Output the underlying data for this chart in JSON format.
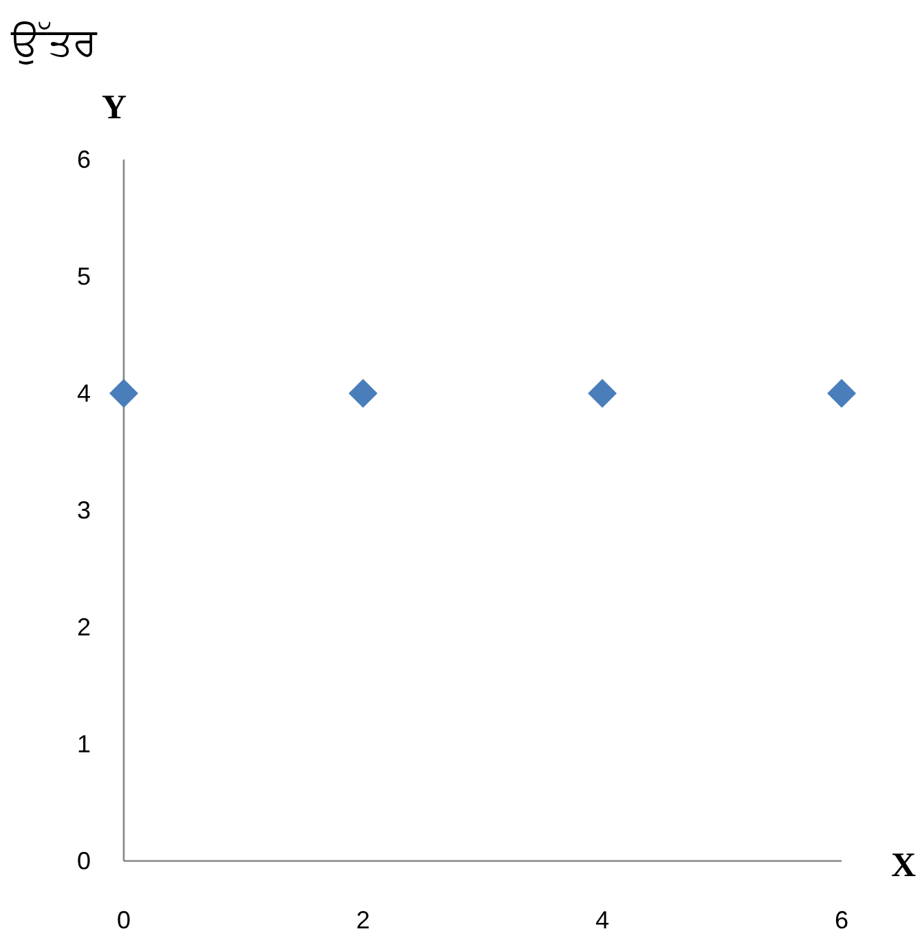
{
  "chart_data": {
    "type": "scatter",
    "title": "ਉੱਤਰ",
    "xlabel": "X",
    "ylabel": "Y",
    "x": [
      0,
      2,
      4,
      6
    ],
    "values": [
      4,
      4,
      4,
      4
    ],
    "color": "#4a7ebb",
    "marker": "diamond",
    "xlim": [
      0,
      6
    ],
    "ylim": [
      0,
      6
    ],
    "xticks": [
      0,
      2,
      4,
      6
    ],
    "yticks": [
      0,
      1,
      2,
      3,
      4,
      5,
      6
    ],
    "grid": false
  }
}
